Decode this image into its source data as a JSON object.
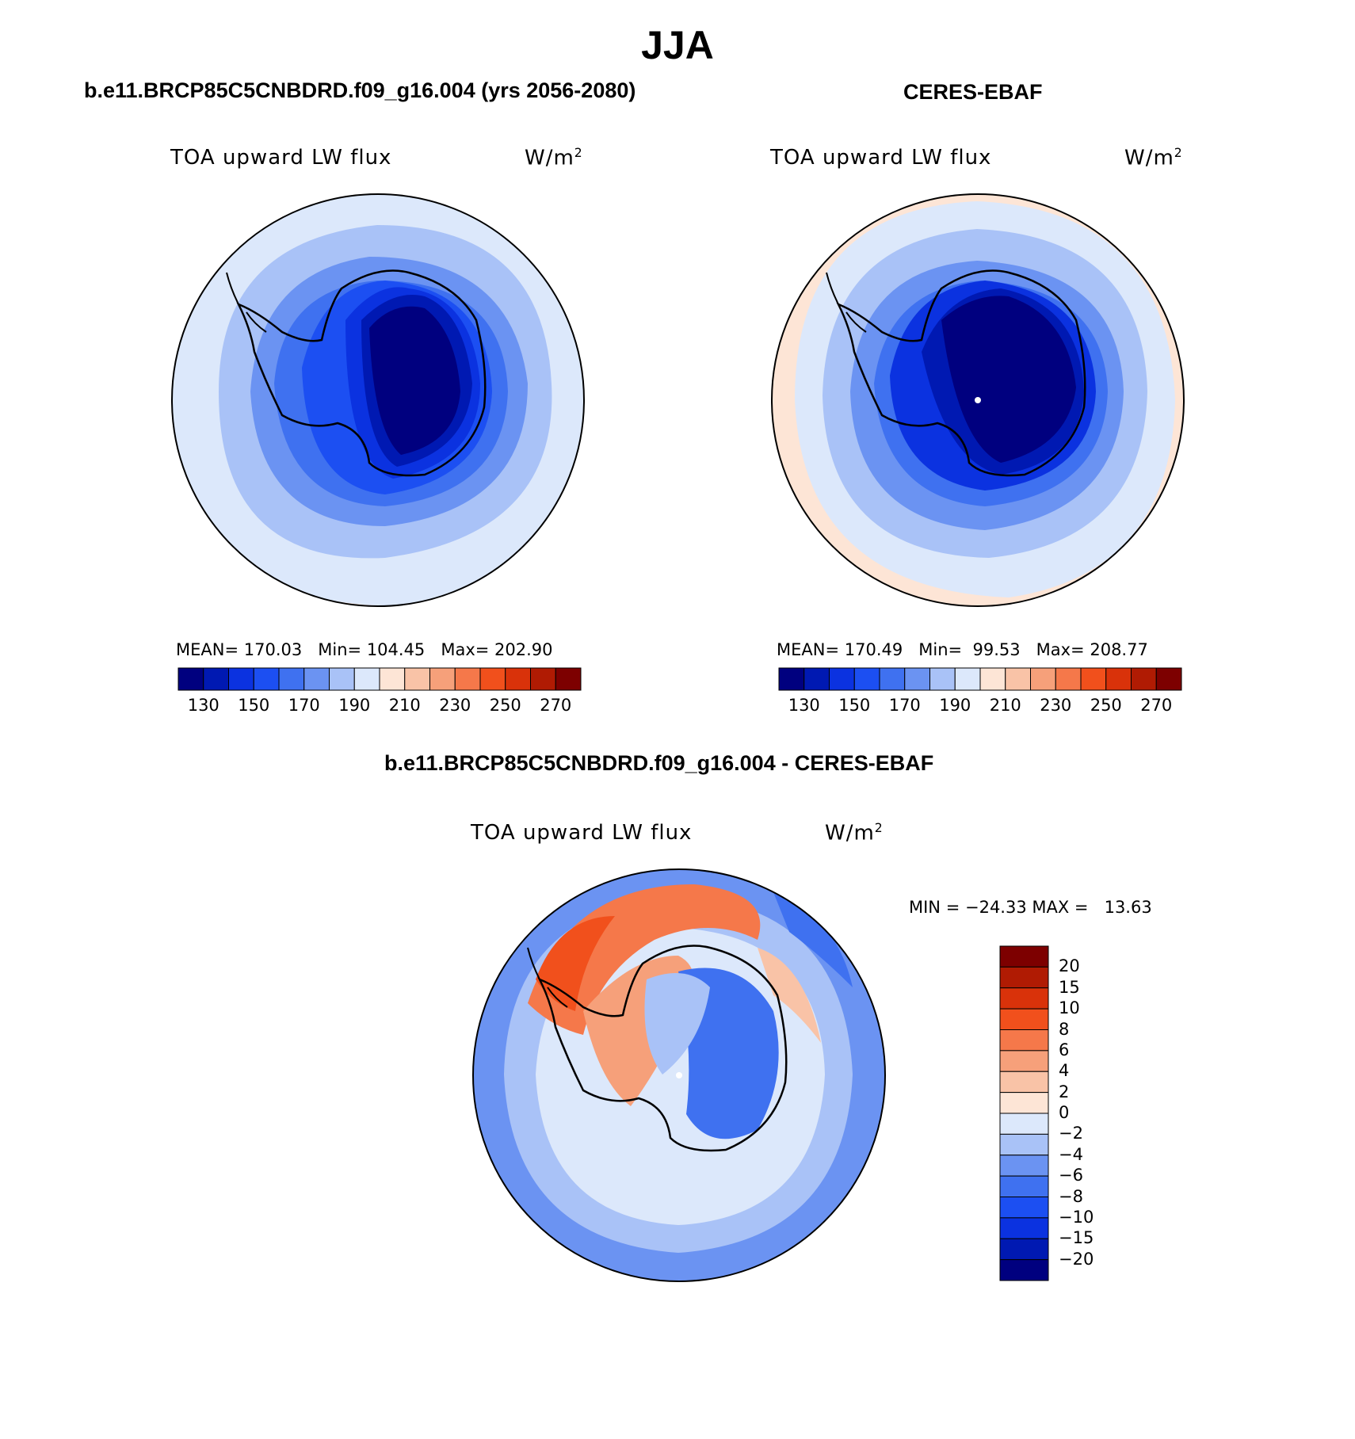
{
  "figure": {
    "title": "JJA",
    "panel_left_title": "b.e11.BRCP85C5CNBDRD.f09_g16.004 (yrs 2056-2080)",
    "panel_right_title": "CERES-EBAF",
    "panel_diff_title": "b.e11.BRCP85C5CNBDRD.f09_g16.004 - CERES-EBAF"
  },
  "variable": {
    "name": "TOA upward LW flux",
    "unit_base": "W/m",
    "unit_exp": "2"
  },
  "panels": {
    "model": {
      "mean_label": "MEAN=",
      "mean": "170.03",
      "min_label": "Min=",
      "min": "104.45",
      "max_label": "Max=",
      "max": "202.90"
    },
    "obs": {
      "mean_label": "MEAN=",
      "mean": "170.49",
      "min_label": "Min=",
      "min": "99.53",
      "max_label": "Max=",
      "max": "208.77"
    },
    "diff": {
      "min_label": "MIN =",
      "min": "−24.33",
      "max_label": "MAX =",
      "max": "13.63"
    }
  },
  "colorbar_main": {
    "colors": [
      "#00007f",
      "#0019b2",
      "#0b32e0",
      "#1c4ff2",
      "#3f71f0",
      "#6b93f2",
      "#a9c2f7",
      "#dce8fb",
      "#fde5d6",
      "#f9c3a7",
      "#f6a07a",
      "#f5784a",
      "#f1501c",
      "#d9320a",
      "#b01b03",
      "#7d0000"
    ],
    "tick_labels": [
      "130",
      "150",
      "170",
      "190",
      "210",
      "230",
      "250",
      "270"
    ]
  },
  "colorbar_diff": {
    "colors": [
      "#7d0000",
      "#b01b03",
      "#d9320a",
      "#f1501c",
      "#f5784a",
      "#f6a07a",
      "#f9c3a7",
      "#fde5d6",
      "#dce8fb",
      "#a9c2f7",
      "#6b93f2",
      "#3f71f0",
      "#1c4ff2",
      "#0b32e0",
      "#0019b2",
      "#00007f"
    ],
    "tick_labels": [
      "20",
      "15",
      "10",
      "8",
      "6",
      "4",
      "2",
      "0",
      "−2",
      "−4",
      "−6",
      "−8",
      "−10",
      "−15",
      "−20"
    ]
  },
  "map_colors": {
    "outer": "#dce8fb",
    "ring1": "#a9c2f7",
    "ring2": "#6b93f2",
    "ring3": "#3f71f0",
    "ring4": "#1c4ff2",
    "inner1": "#0b32e0",
    "inner2": "#0019b2",
    "core": "#00007f",
    "edge_warm": "#fde5d6"
  }
}
